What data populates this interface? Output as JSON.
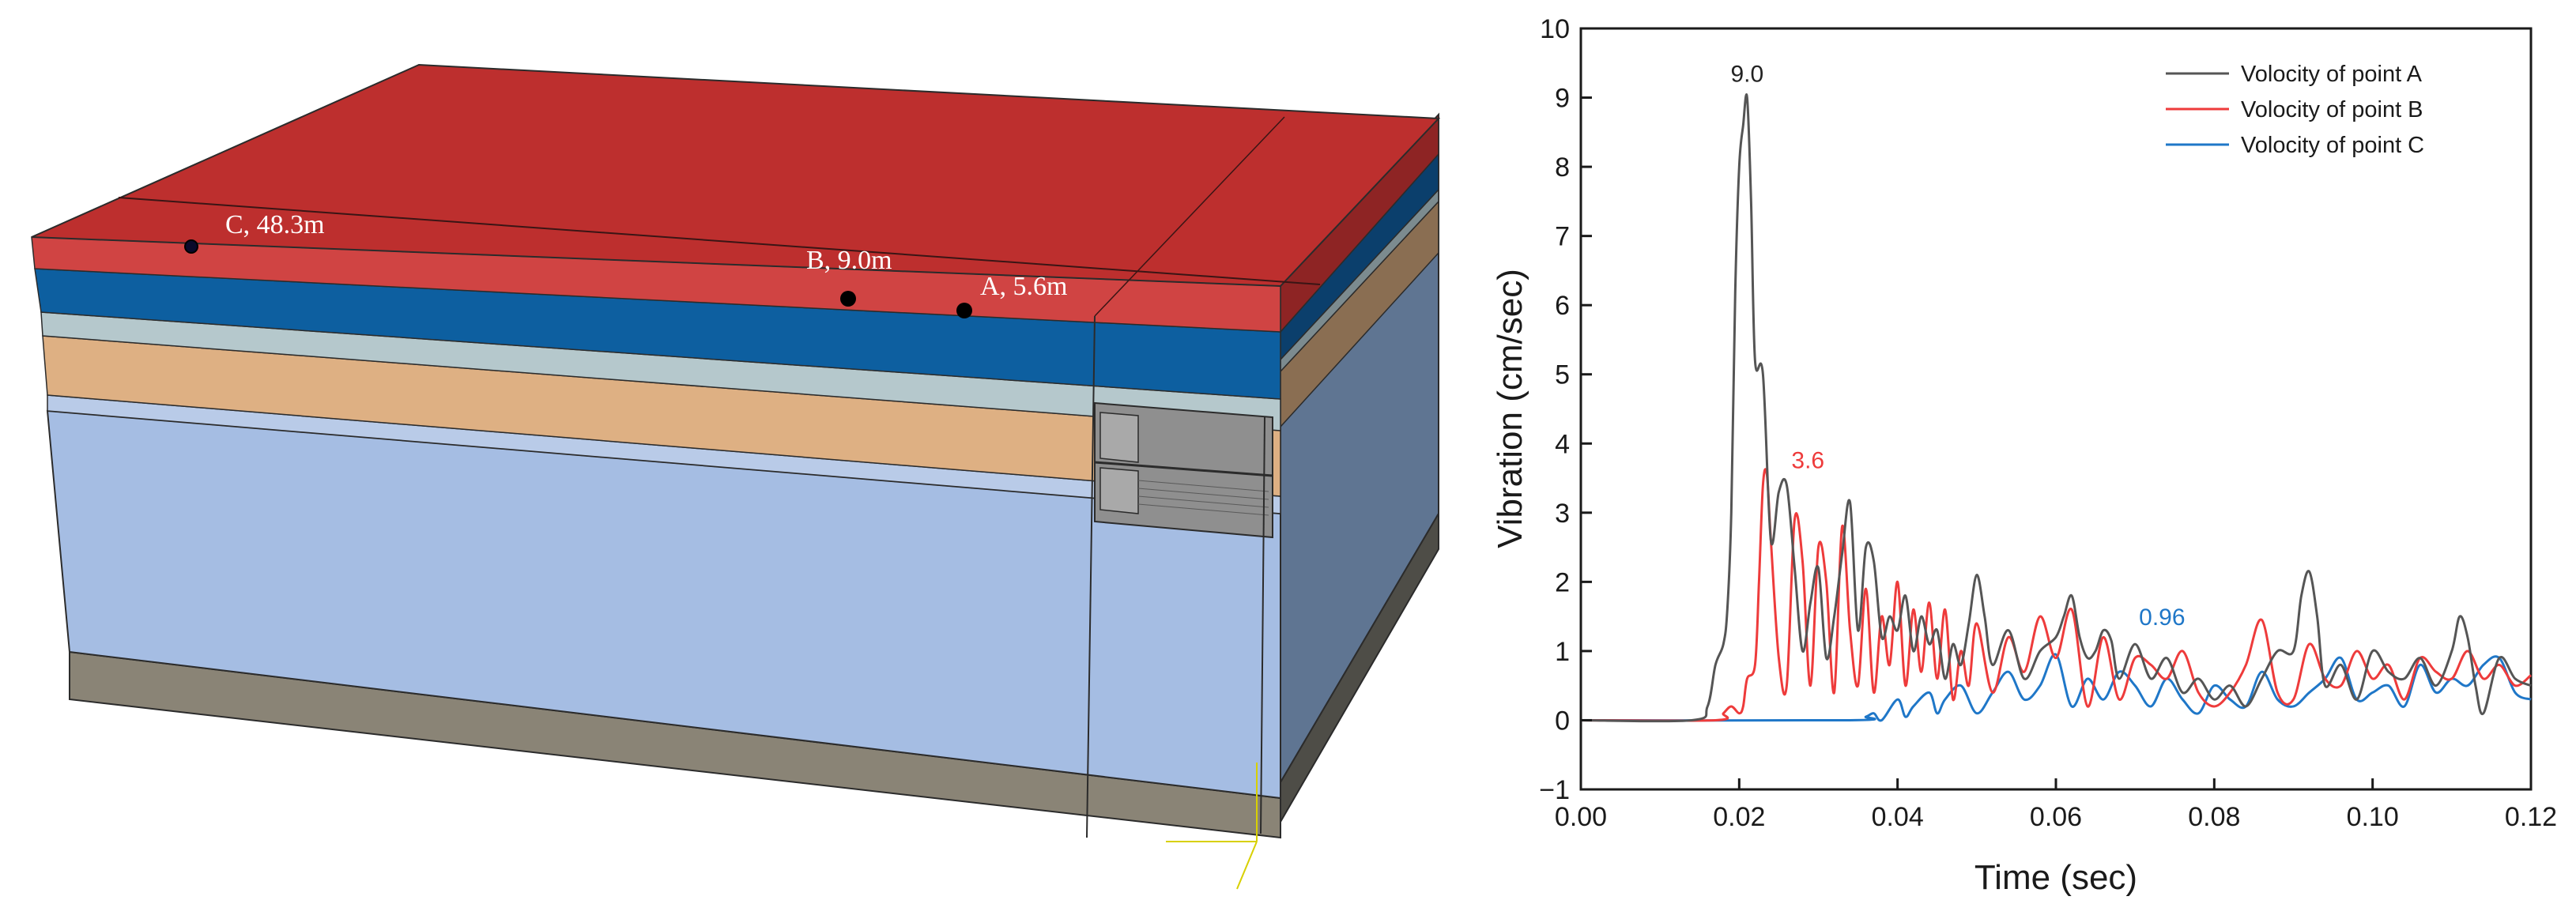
{
  "model": {
    "points": [
      {
        "label": "C, 48.3m"
      },
      {
        "label": "B, 9.0m"
      },
      {
        "label": "A, 5.6m"
      }
    ],
    "layer_colors": {
      "asphalt_top": "#bd2f2e",
      "asphalt_front": "#d04443",
      "blue_layer": "#0d5fa0",
      "light_gray_layer": "#b5c8cc",
      "tan_layer": "#deb083",
      "light_blue_layer": "#a5bde3",
      "bottom_layer": "#8a8476",
      "right_face": "#5f7592"
    }
  },
  "chart_data": {
    "type": "line",
    "xlabel": "Time (sec)",
    "ylabel": "Vibration (cm/sec)",
    "xlim": [
      0,
      0.12
    ],
    "ylim": [
      -1,
      10
    ],
    "xticks": [
      "0.00",
      "0.02",
      "0.04",
      "0.06",
      "0.08",
      "0.10",
      "0.12"
    ],
    "yticks": [
      "−1",
      "0",
      "1",
      "2",
      "3",
      "4",
      "5",
      "6",
      "7",
      "8",
      "9",
      "10"
    ],
    "legend_position": "top-right",
    "grid": false,
    "series": [
      {
        "name": "Volocity of point A",
        "color": "#555555",
        "x": [
          0.0,
          0.014,
          0.016,
          0.017,
          0.018,
          0.0185,
          0.019,
          0.0195,
          0.02,
          0.0205,
          0.021,
          0.0215,
          0.022,
          0.023,
          0.024,
          0.025,
          0.026,
          0.027,
          0.028,
          0.029,
          0.03,
          0.031,
          0.032,
          0.033,
          0.034,
          0.035,
          0.036,
          0.037,
          0.038,
          0.039,
          0.04,
          0.041,
          0.042,
          0.043,
          0.044,
          0.045,
          0.046,
          0.047,
          0.048,
          0.049,
          0.05,
          0.051,
          0.052,
          0.054,
          0.056,
          0.058,
          0.06,
          0.061,
          0.062,
          0.063,
          0.064,
          0.065,
          0.066,
          0.067,
          0.068,
          0.07,
          0.072,
          0.074,
          0.076,
          0.078,
          0.08,
          0.082,
          0.084,
          0.086,
          0.088,
          0.09,
          0.091,
          0.092,
          0.093,
          0.094,
          0.096,
          0.098,
          0.1,
          0.102,
          0.104,
          0.106,
          0.108,
          0.11,
          0.111,
          0.112,
          0.113,
          0.114,
          0.116,
          0.118,
          0.12
        ],
        "y": [
          0.0,
          0.0,
          0.2,
          0.8,
          1.1,
          1.6,
          3.0,
          6.2,
          8.0,
          8.6,
          9.0,
          7.5,
          5.2,
          5.0,
          2.6,
          3.3,
          3.4,
          2.2,
          1.0,
          1.7,
          2.2,
          0.9,
          1.5,
          2.4,
          3.15,
          1.3,
          2.5,
          2.3,
          1.2,
          1.5,
          1.3,
          1.8,
          1.0,
          1.5,
          1.1,
          1.3,
          0.6,
          1.1,
          0.8,
          1.4,
          2.1,
          1.5,
          0.8,
          1.3,
          0.6,
          1.0,
          1.2,
          1.5,
          1.8,
          1.2,
          0.9,
          1.0,
          1.3,
          1.15,
          0.6,
          1.1,
          0.6,
          0.9,
          0.4,
          0.6,
          0.3,
          0.5,
          0.2,
          0.6,
          1.0,
          1.0,
          1.8,
          2.15,
          1.5,
          0.5,
          0.8,
          0.3,
          1.0,
          0.7,
          0.6,
          0.9,
          0.5,
          1.0,
          1.5,
          1.2,
          0.5,
          0.1,
          0.9,
          0.6,
          0.5
        ]
      },
      {
        "name": "Volocity of point B",
        "color": "#ee3b3b",
        "x": [
          0.0,
          0.017,
          0.018,
          0.019,
          0.02,
          0.0205,
          0.021,
          0.022,
          0.0225,
          0.023,
          0.0235,
          0.024,
          0.025,
          0.026,
          0.027,
          0.028,
          0.029,
          0.03,
          0.031,
          0.032,
          0.033,
          0.034,
          0.035,
          0.036,
          0.037,
          0.038,
          0.039,
          0.04,
          0.041,
          0.042,
          0.043,
          0.044,
          0.045,
          0.046,
          0.047,
          0.048,
          0.049,
          0.05,
          0.052,
          0.054,
          0.056,
          0.058,
          0.06,
          0.062,
          0.064,
          0.066,
          0.068,
          0.07,
          0.072,
          0.074,
          0.076,
          0.078,
          0.08,
          0.082,
          0.084,
          0.086,
          0.088,
          0.09,
          0.092,
          0.094,
          0.096,
          0.098,
          0.1,
          0.102,
          0.104,
          0.106,
          0.108,
          0.11,
          0.112,
          0.114,
          0.116,
          0.118,
          0.12
        ],
        "y": [
          0.0,
          0.0,
          0.1,
          0.2,
          0.1,
          0.2,
          0.6,
          0.8,
          2.0,
          3.4,
          3.55,
          2.6,
          0.9,
          0.5,
          2.9,
          2.3,
          0.5,
          2.5,
          2.0,
          0.4,
          2.8,
          1.3,
          0.5,
          1.9,
          0.4,
          1.5,
          0.8,
          2.0,
          0.5,
          1.6,
          0.7,
          1.7,
          0.6,
          1.6,
          0.3,
          1.0,
          0.5,
          1.4,
          0.4,
          1.2,
          0.7,
          1.5,
          0.9,
          1.6,
          0.2,
          1.2,
          0.3,
          0.9,
          0.8,
          0.6,
          1.0,
          0.4,
          0.2,
          0.4,
          0.8,
          1.45,
          0.4,
          0.3,
          1.1,
          0.6,
          0.5,
          1.0,
          0.6,
          0.8,
          0.3,
          0.9,
          0.7,
          0.6,
          1.0,
          0.6,
          0.8,
          0.5,
          0.65
        ]
      },
      {
        "name": "Volocity of point C",
        "color": "#1f77c8",
        "x": [
          0.0,
          0.034,
          0.036,
          0.037,
          0.038,
          0.04,
          0.041,
          0.042,
          0.044,
          0.045,
          0.046,
          0.048,
          0.05,
          0.052,
          0.054,
          0.056,
          0.058,
          0.06,
          0.062,
          0.064,
          0.066,
          0.068,
          0.07,
          0.072,
          0.074,
          0.076,
          0.078,
          0.08,
          0.082,
          0.084,
          0.086,
          0.088,
          0.09,
          0.092,
          0.094,
          0.096,
          0.098,
          0.1,
          0.102,
          0.104,
          0.106,
          0.108,
          0.11,
          0.112,
          0.114,
          0.116,
          0.118,
          0.12
        ],
        "y": [
          0.0,
          0.0,
          0.05,
          0.1,
          0.0,
          0.3,
          0.05,
          0.2,
          0.4,
          0.1,
          0.3,
          0.5,
          0.1,
          0.4,
          0.7,
          0.3,
          0.5,
          0.95,
          0.2,
          0.6,
          0.3,
          0.7,
          0.5,
          0.2,
          0.6,
          0.3,
          0.1,
          0.5,
          0.3,
          0.2,
          0.7,
          0.3,
          0.2,
          0.4,
          0.6,
          0.9,
          0.3,
          0.4,
          0.5,
          0.2,
          0.8,
          0.4,
          0.6,
          0.5,
          0.8,
          0.9,
          0.4,
          0.3
        ]
      }
    ],
    "annotations": [
      {
        "text": "9.0",
        "x": 0.021,
        "y": 9.0,
        "color": "#222222"
      },
      {
        "text": "3.6",
        "x": 0.024,
        "y": 3.55,
        "color": "#ee3b3b"
      },
      {
        "text": "0.96",
        "x": 0.0685,
        "y": 1.15,
        "color": "#1f77c8"
      }
    ]
  }
}
